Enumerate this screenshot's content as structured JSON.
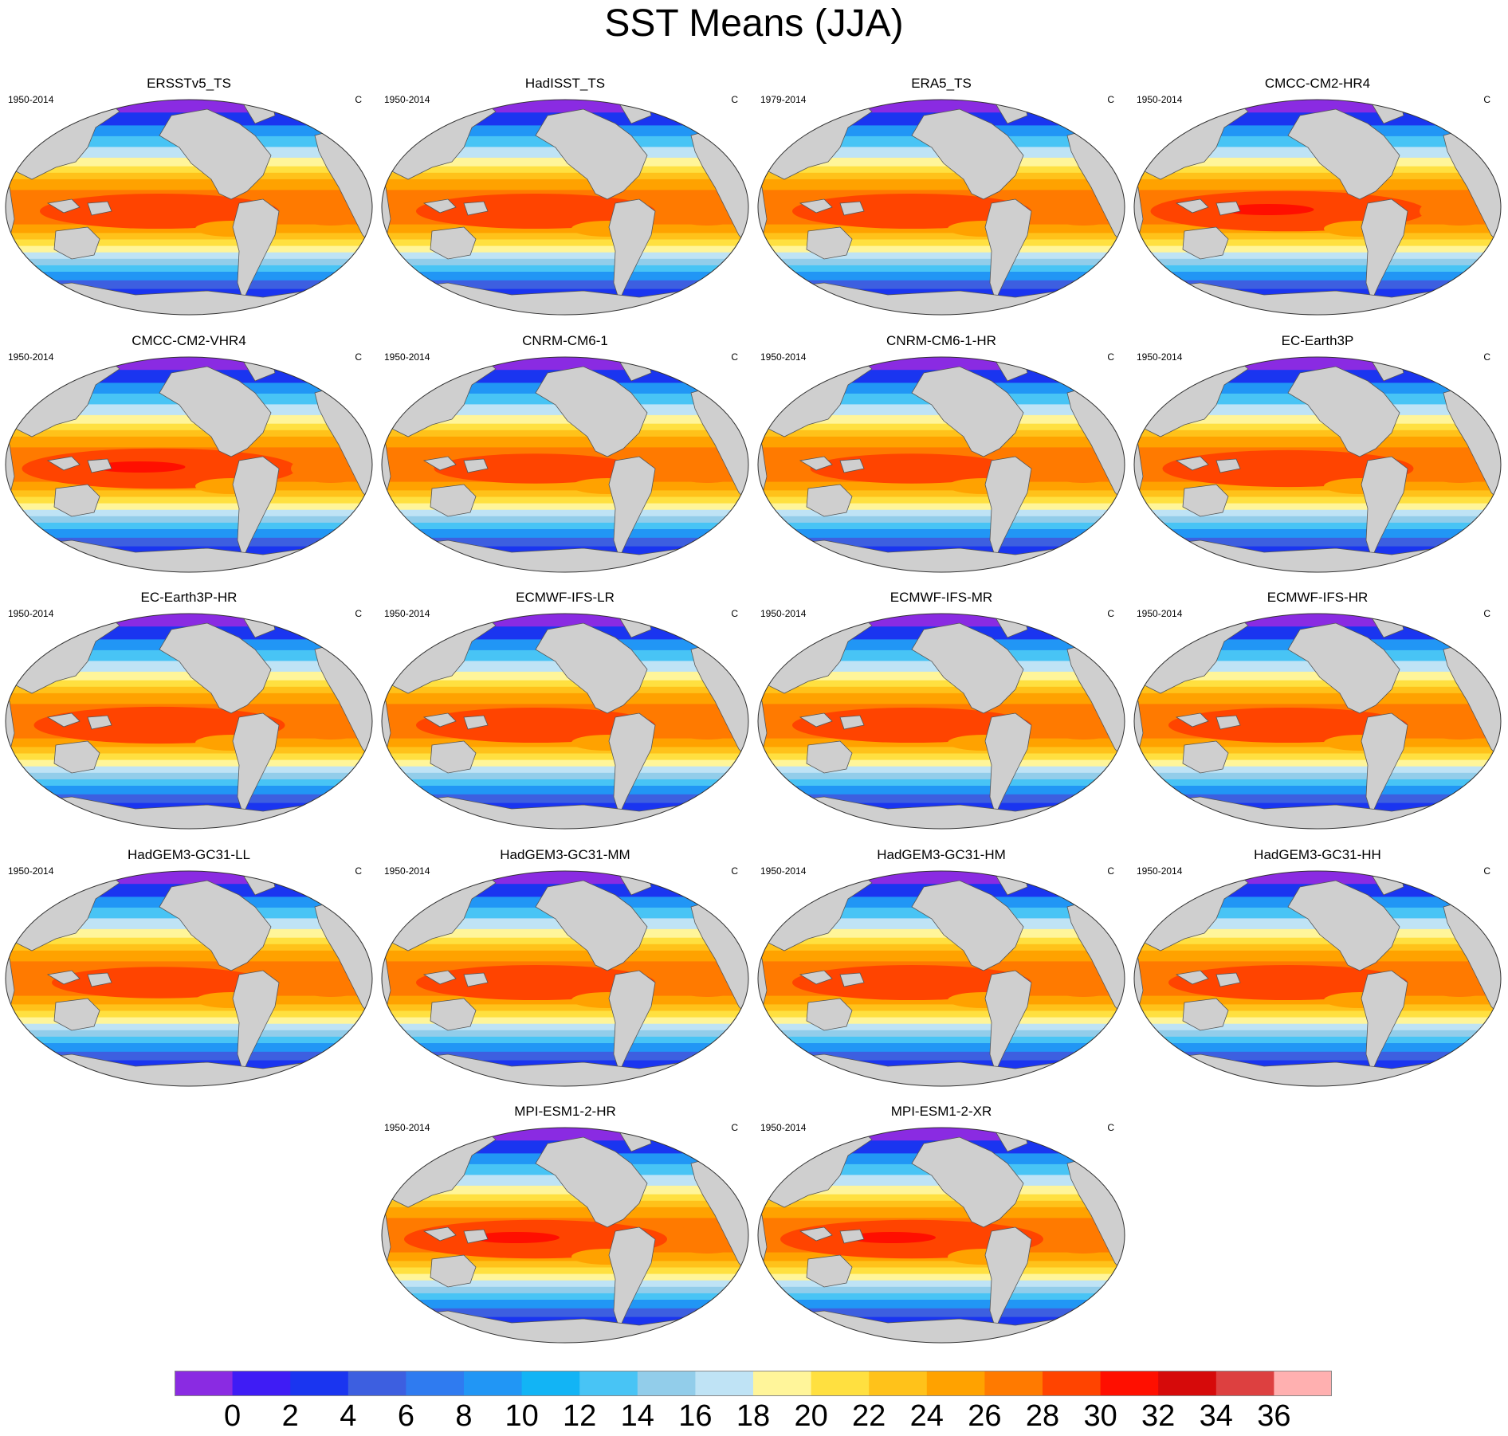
{
  "title": "SST Means (JJA)",
  "panels": [
    {
      "name": "ERSSTv5_TS",
      "period": "1950-2014",
      "units": "C",
      "warm": 1.0
    },
    {
      "name": "HadISST_TS",
      "period": "1950-2014",
      "units": "C",
      "warm": 1.0
    },
    {
      "name": "ERA5_TS",
      "period": "1979-2014",
      "units": "C",
      "warm": 1.0
    },
    {
      "name": "CMCC-CM2-HR4",
      "period": "1950-2014",
      "units": "C",
      "warm": 1.15
    },
    {
      "name": "CMCC-CM2-VHR4",
      "period": "1950-2014",
      "units": "C",
      "warm": 1.15
    },
    {
      "name": "CNRM-CM6-1",
      "period": "1950-2014",
      "units": "C",
      "warm": 0.85
    },
    {
      "name": "CNRM-CM6-1-HR",
      "period": "1950-2014",
      "units": "C",
      "warm": 0.85
    },
    {
      "name": "EC-Earth3P",
      "period": "1950-2014",
      "units": "C",
      "warm": 1.05
    },
    {
      "name": "EC-Earth3P-HR",
      "period": "1950-2014",
      "units": "C",
      "warm": 1.05
    },
    {
      "name": "ECMWF-IFS-LR",
      "period": "1950-2014",
      "units": "C",
      "warm": 1.0
    },
    {
      "name": "ECMWF-IFS-MR",
      "period": "1950-2014",
      "units": "C",
      "warm": 1.0
    },
    {
      "name": "ECMWF-IFS-HR",
      "period": "1950-2014",
      "units": "C",
      "warm": 1.0
    },
    {
      "name": "HadGEM3-GC31-LL",
      "period": "1950-2014",
      "units": "C",
      "warm": 0.9
    },
    {
      "name": "HadGEM3-GC31-MM",
      "period": "1950-2014",
      "units": "C",
      "warm": 1.0
    },
    {
      "name": "HadGEM3-GC31-HM",
      "period": "1950-2014",
      "units": "C",
      "warm": 1.0
    },
    {
      "name": "HadGEM3-GC31-HH",
      "period": "1950-2014",
      "units": "C",
      "warm": 1.0
    },
    {
      "name": "MPI-ESM1-2-HR",
      "period": "1950-2014",
      "units": "C",
      "warm": 1.1
    },
    {
      "name": "MPI-ESM1-2-XR",
      "period": "1950-2014",
      "units": "C",
      "warm": 1.1
    }
  ],
  "colorbar": {
    "labels": [
      "0",
      "2",
      "4",
      "6",
      "8",
      "10",
      "12",
      "14",
      "16",
      "18",
      "20",
      "22",
      "24",
      "26",
      "28",
      "30",
      "32",
      "34",
      "36"
    ],
    "colors": [
      "#8a2be2",
      "#3f1cf5",
      "#1a35f0",
      "#3d5fe0",
      "#2f7bf0",
      "#2196f5",
      "#12b4f5",
      "#48c4f5",
      "#92cdea",
      "#bfe3f5",
      "#fff59a",
      "#ffe040",
      "#ffc21a",
      "#ffa200",
      "#ff7a00",
      "#ff4400",
      "#ff0f00",
      "#d60a0a",
      "#dd4040",
      "#ffb0b0"
    ]
  }
}
